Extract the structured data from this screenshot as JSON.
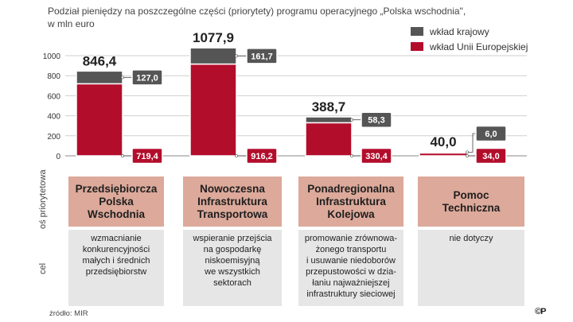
{
  "title_line1": "Podział pieniędzy na poszczególne części (priorytety) programu operacyjnego „Polska wschodnia\",",
  "title_line2": "w mln euro",
  "colors": {
    "national": "#555555",
    "eu": "#b30d2c",
    "priority_bg": "#dca99a",
    "goal_bg": "#e6e6e6"
  },
  "row_labels": {
    "priority": "oś priorytetowa",
    "goal": "cel"
  },
  "source": "źródło: MIR",
  "logo": "©P",
  "chart_data": {
    "type": "bar",
    "stacked": true,
    "title": "Podział pieniędzy na poszczególne części (priorytety) programu operacyjnego „Polska wschodnia\", w mln euro",
    "ylim": [
      0,
      1000
    ],
    "yticks": [
      0,
      200,
      400,
      600,
      800,
      1000
    ],
    "grid": true,
    "legend_position": "top-right",
    "categories": [
      "Przedsiębiorcza Polska Wschodnia",
      "Nowoczesna Infrastruktura Transportowa",
      "Ponadregionalna Infrastruktura Kolejowa",
      "Pomoc Techniczna"
    ],
    "totals": [
      "846,4",
      "1077,9",
      "388,7",
      "40,0"
    ],
    "series": [
      {
        "name": "wkład Unii Europejskiej",
        "key": "eu",
        "values": [
          719.4,
          916.2,
          330.4,
          34.0
        ],
        "labels": [
          "719,4",
          "916,2",
          "330,4",
          "34,0"
        ]
      },
      {
        "name": "wkład krajowy",
        "key": "national",
        "values": [
          127.0,
          161.7,
          58.3,
          6.0
        ],
        "labels": [
          "127,0",
          "161,7",
          "58,3",
          "6,0"
        ]
      }
    ]
  },
  "priorities": [
    {
      "name": "Przedsiębiorcza\nPolska\nWschodnia",
      "goal": "wzmacnianie\nkonkurencyjności\nmałych i średnich\nprzedsiębiorstw"
    },
    {
      "name": "Nowoczesna\nInfrastruktura\nTransportowa",
      "goal": "wspieranie przejścia\nna gospodarkę\nniskoemisyjną\nwe wszystkich\nsektorach"
    },
    {
      "name": "Ponadregionalna\nInfrastruktura\nKolejowa",
      "goal": "promowanie zrównowa-\nżonego  transportu\ni usuwanie niedoborów\nprzepustowości w dzia-\nłaniu najważniejszej\ninfrastruktury sieciowej"
    },
    {
      "name": "Pomoc\nTechniczna",
      "goal": "nie dotyczy"
    }
  ]
}
